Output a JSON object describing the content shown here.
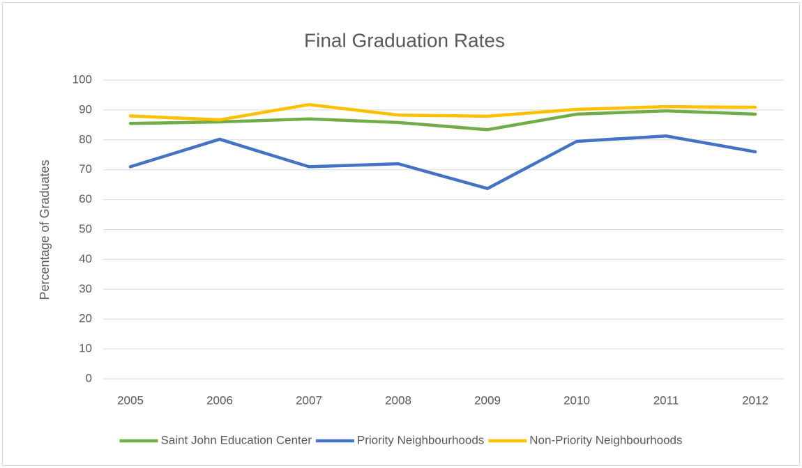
{
  "chart_data": {
    "type": "line",
    "title": "Final Graduation Rates",
    "y_label": "Percentage of Graduates",
    "categories": [
      "2005",
      "2006",
      "2007",
      "2008",
      "2009",
      "2010",
      "2011",
      "2012"
    ],
    "series": [
      {
        "name": "Saint John Education Center",
        "color": "#70ad47",
        "values": [
          85.5,
          86,
          87,
          85.8,
          83.4,
          88.6,
          89.7,
          88.6
        ]
      },
      {
        "name": "Priority Neighbourhoods",
        "color": "#4472c4",
        "values": [
          71,
          80.2,
          71,
          72,
          63.7,
          79.5,
          81.3,
          76
        ]
      },
      {
        "name": "Non-Priority Neighbourhoods",
        "color": "#ffc000",
        "values": [
          88,
          86.7,
          91.8,
          88.3,
          87.9,
          90.2,
          91.1,
          90.9
        ]
      }
    ],
    "ylim": [
      0,
      100
    ],
    "yticks": [
      0,
      10,
      20,
      30,
      40,
      50,
      60,
      70,
      80,
      90,
      100
    ],
    "grid": true,
    "legend": "bottom"
  }
}
